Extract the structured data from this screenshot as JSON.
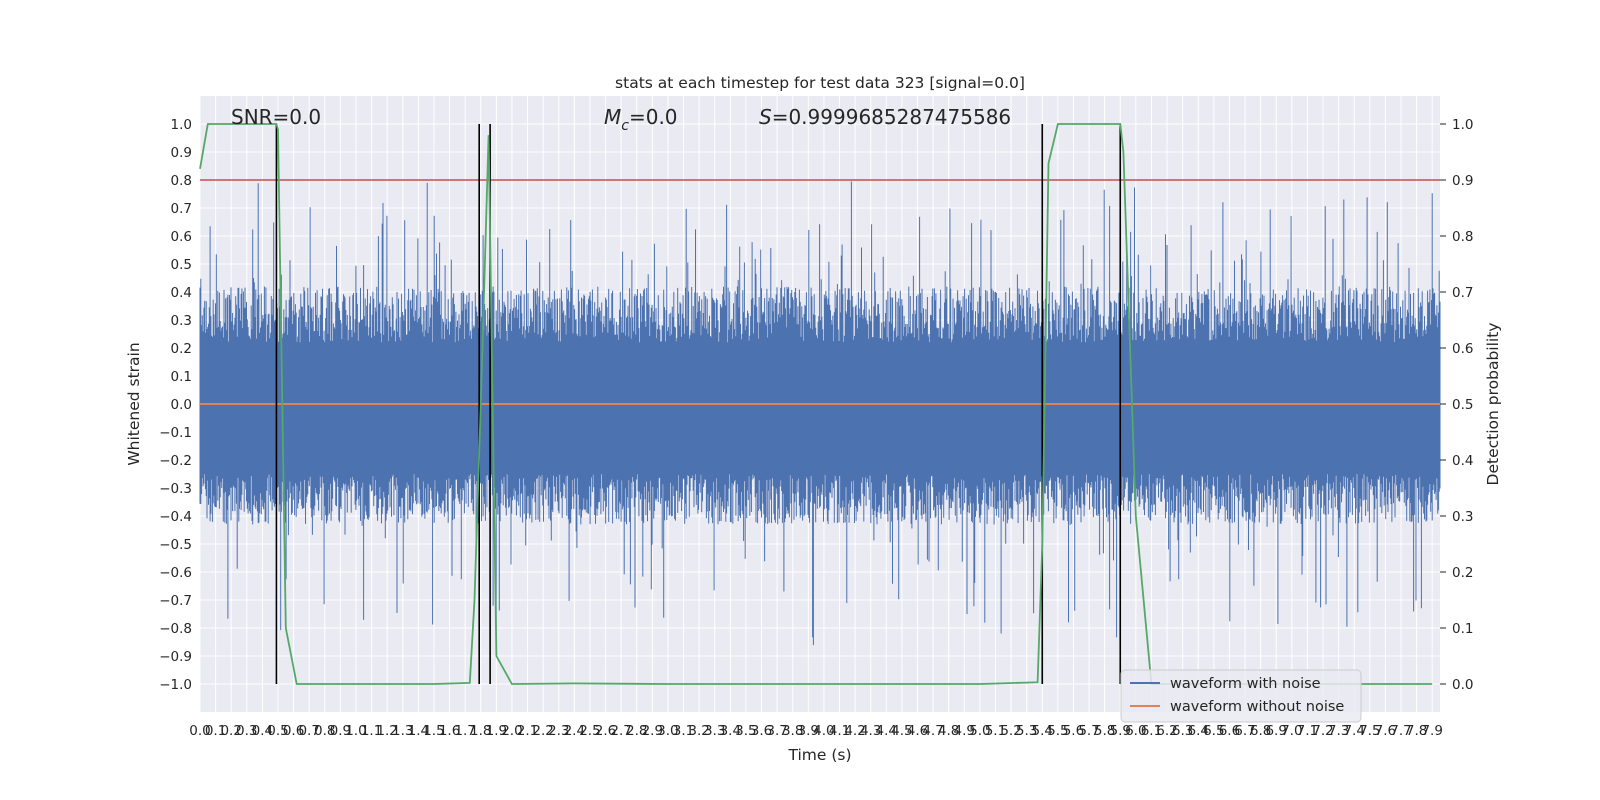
{
  "chart_data": {
    "type": "line",
    "title": "stats at each timestep for test data 323 [signal=0.0]",
    "xlabel": "Time (s)",
    "ylabel": "Whitened strain",
    "y2label": "Detection probability",
    "xlim": [
      0.0,
      7.95
    ],
    "ylim": [
      -1.1,
      1.1
    ],
    "y2lim": [
      -0.05,
      1.05
    ],
    "x_ticks": [
      "0.0",
      "0.1",
      "0.2",
      "0.3",
      "0.4",
      "0.5",
      "0.6",
      "0.7",
      "0.8",
      "0.9",
      "1.0",
      "1.1",
      "1.2",
      "1.3",
      "1.4",
      "1.5",
      "1.6",
      "1.7",
      "1.8",
      "1.9",
      "2.0",
      "2.1",
      "2.2",
      "2.3",
      "2.4",
      "2.5",
      "2.6",
      "2.7",
      "2.8",
      "2.9",
      "3.0",
      "3.1",
      "3.2",
      "3.3",
      "3.4",
      "3.5",
      "3.6",
      "3.7",
      "3.8",
      "3.9",
      "4.0",
      "4.1",
      "4.2",
      "4.3",
      "4.4",
      "4.5",
      "4.6",
      "4.7",
      "4.8",
      "4.9",
      "5.0",
      "5.1",
      "5.2",
      "5.3",
      "5.4",
      "5.5",
      "5.6",
      "5.7",
      "5.8",
      "5.9",
      "6.0",
      "6.1",
      "6.2",
      "6.3",
      "6.4",
      "6.5",
      "6.6",
      "6.7",
      "6.8",
      "6.9",
      "7.0",
      "7.1",
      "7.2",
      "7.3",
      "7.4",
      "7.5",
      "7.6",
      "7.7",
      "7.8",
      "7.9"
    ],
    "y_ticks": [
      "1.0",
      "0.9",
      "0.8",
      "0.7",
      "0.6",
      "0.5",
      "0.4",
      "0.3",
      "0.2",
      "0.1",
      "0.0",
      "−0.1",
      "−0.2",
      "−0.3",
      "−0.4",
      "−0.5",
      "−0.6",
      "−0.7",
      "−0.8",
      "−0.9",
      "−1.0"
    ],
    "y2_ticks": [
      "1.0",
      "0.9",
      "0.8",
      "0.7",
      "0.6",
      "0.5",
      "0.4",
      "0.3",
      "0.2",
      "0.1",
      "0.0"
    ],
    "annotations": {
      "snr": "SNR=0.0",
      "mc_symbol": "M",
      "mc_sub": "c",
      "mc_value": "=0.0",
      "s_symbol": "S",
      "s_value": "=0.9999685287475586"
    },
    "threshold": 0.9,
    "detection_probability": {
      "x": [
        0.0,
        0.05,
        0.1,
        0.2,
        0.3,
        0.4,
        0.49,
        0.5,
        0.55,
        0.62,
        1.0,
        1.5,
        1.73,
        1.76,
        1.8,
        1.85,
        1.9,
        2.0,
        2.4,
        3.0,
        4.0,
        5.0,
        5.37,
        5.4,
        5.44,
        5.5,
        5.6,
        5.8,
        5.9,
        5.92,
        6.0,
        6.1,
        6.5,
        7.0,
        7.5,
        7.9
      ],
      "y": [
        0.92,
        1.0,
        1.0,
        1.0,
        1.0,
        1.0,
        1.0,
        0.99,
        0.1,
        0.0,
        0.0,
        0.0,
        0.002,
        0.15,
        0.5,
        0.98,
        0.05,
        0.0,
        0.001,
        0.0,
        0.0,
        0.0,
        0.003,
        0.25,
        0.93,
        1.0,
        1.0,
        1.0,
        1.0,
        0.95,
        0.3,
        0.0,
        0.0,
        0.0,
        0.0,
        0.0
      ]
    },
    "markers_s": [
      0.49,
      1.79,
      1.86,
      5.4,
      5.9
    ],
    "legend": {
      "placement": "lower-right",
      "entries": [
        "waveform with noise",
        "waveform without noise"
      ]
    },
    "colors": {
      "noise": "#4c72b0",
      "clean": "#dd8452",
      "probability": "#55a868",
      "threshold": "#c44e52",
      "marker": "#000000",
      "grid": "#ffffff",
      "background": "#eaeaf2"
    },
    "grid": true
  }
}
